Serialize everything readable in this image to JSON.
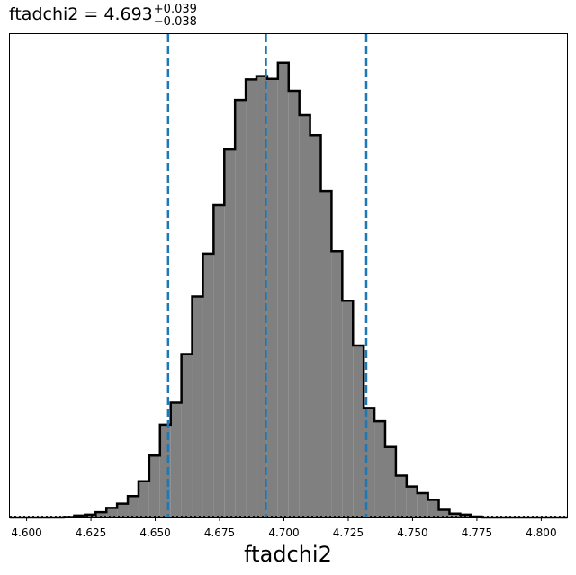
{
  "chart_data": {
    "type": "histogram",
    "title": {
      "param": "ftadchi2",
      "equals": " = ",
      "value": "4.693",
      "upper_err": "+0.039",
      "lower_err": "−0.038"
    },
    "xlabel": "ftadchi2",
    "ylabel": "",
    "xlim": [
      4.5935,
      4.81
    ],
    "ylim": [
      0,
      1.0
    ],
    "x_ticks": [
      4.6,
      4.625,
      4.65,
      4.675,
      4.7,
      4.725,
      4.75,
      4.775,
      4.8
    ],
    "x_tick_labels": [
      "4.600",
      "4.625",
      "4.650",
      "4.675",
      "4.700",
      "4.725",
      "4.750",
      "4.775",
      "4.800"
    ],
    "y_ticks_shown": false,
    "bins": {
      "start": 4.5935,
      "width": 0.004167,
      "values": [
        0.0,
        0.0,
        0.0,
        0.0,
        0.0,
        0.001,
        0.004,
        0.006,
        0.011,
        0.02,
        0.029,
        0.045,
        0.076,
        0.13,
        0.195,
        0.241,
        0.343,
        0.464,
        0.554,
        0.656,
        0.773,
        0.877,
        0.92,
        0.927,
        0.921,
        0.955,
        0.896,
        0.845,
        0.803,
        0.686,
        0.559,
        0.455,
        0.361,
        0.23,
        0.202,
        0.148,
        0.088,
        0.065,
        0.051,
        0.037,
        0.016,
        0.008,
        0.006,
        0.002,
        0.0,
        0.0,
        0.0,
        0.0,
        0.0,
        0.0,
        0.0,
        0.0
      ]
    },
    "fill_color": "#808080",
    "edge_color": "#000000",
    "quantile_lines": {
      "values": [
        4.655,
        4.693,
        4.732
      ],
      "color": "#1f77b4",
      "style": "dashed"
    },
    "baseline": {
      "value": 0.0015,
      "style": "dotted",
      "color": "#000000"
    },
    "grid": false,
    "legend": "none"
  }
}
